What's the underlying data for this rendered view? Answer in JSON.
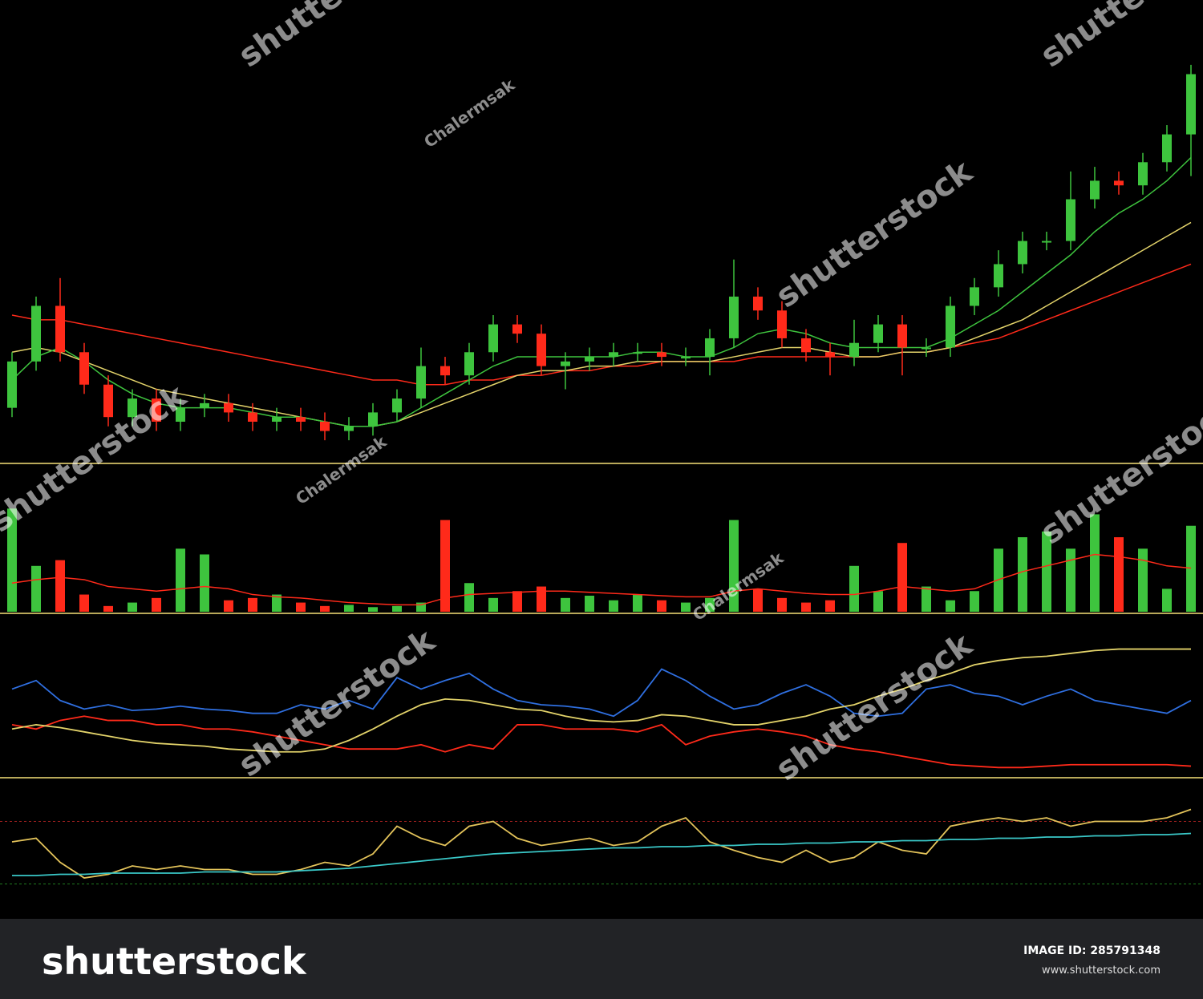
{
  "chart_data": [
    {
      "type": "candlestick",
      "ylim": [
        0,
        100
      ],
      "up_color": "#3ec43e",
      "down_color": "#ff2a1a",
      "open": [
        12,
        22,
        34,
        24,
        17,
        10,
        14,
        9,
        12,
        13,
        11,
        9,
        10,
        9,
        7,
        8,
        11,
        14,
        21,
        19,
        24,
        30,
        28,
        21,
        22,
        23,
        24,
        24,
        23,
        23,
        27,
        36,
        33,
        27,
        24,
        23,
        26,
        30,
        25,
        25,
        34,
        38,
        43,
        48,
        48,
        57,
        61,
        60,
        65,
        71
      ],
      "high": [
        24,
        36,
        40,
        26,
        19,
        16,
        16,
        14,
        15,
        15,
        13,
        12,
        12,
        11,
        10,
        13,
        16,
        25,
        23,
        26,
        32,
        32,
        30,
        24,
        25,
        26,
        26,
        26,
        25,
        29,
        44,
        38,
        35,
        29,
        26,
        31,
        32,
        32,
        27,
        36,
        40,
        46,
        50,
        50,
        63,
        64,
        63,
        67,
        73,
        86
      ],
      "low": [
        10,
        20,
        22,
        15,
        8,
        8,
        7,
        7,
        10,
        9,
        7,
        7,
        7,
        5,
        5,
        6,
        9,
        12,
        17,
        17,
        22,
        26,
        19,
        16,
        20,
        21,
        22,
        21,
        21,
        19,
        25,
        31,
        25,
        22,
        19,
        21,
        24,
        19,
        23,
        23,
        32,
        36,
        41,
        46,
        46,
        55,
        58,
        58,
        63,
        62
      ],
      "close": [
        22,
        34,
        24,
        17,
        10,
        14,
        9,
        12,
        13,
        11,
        9,
        10,
        9,
        7,
        8,
        11,
        14,
        21,
        19,
        24,
        30,
        28,
        21,
        22,
        23,
        24,
        24,
        23,
        23,
        27,
        36,
        33,
        27,
        24,
        23,
        26,
        30,
        25,
        25,
        34,
        38,
        43,
        48,
        48,
        57,
        61,
        60,
        65,
        71,
        84
      ],
      "series": [
        {
          "color": "#ff2a1a",
          "values": [
            32,
            31,
            31,
            30,
            29,
            28,
            27,
            26,
            25,
            24,
            23,
            22,
            21,
            20,
            19,
            18,
            18,
            17,
            17,
            18,
            18,
            19,
            19,
            20,
            20,
            21,
            21,
            22,
            22,
            22,
            22,
            23,
            23,
            23,
            23,
            23,
            23,
            24,
            24,
            25,
            26,
            27,
            29,
            31,
            33,
            35,
            37,
            39,
            41,
            43
          ]
        },
        {
          "color": "#e3d36a",
          "values": [
            24,
            25,
            24,
            22,
            20,
            18,
            16,
            15,
            14,
            13,
            12,
            11,
            10,
            9,
            8,
            8,
            9,
            11,
            13,
            15,
            17,
            19,
            20,
            20,
            21,
            21,
            22,
            22,
            22,
            22,
            23,
            24,
            25,
            25,
            24,
            23,
            23,
            24,
            24,
            25,
            27,
            29,
            31,
            34,
            37,
            40,
            43,
            46,
            49,
            52
          ]
        },
        {
          "color": "#3ec43e",
          "values": [
            18,
            23,
            25,
            22,
            18,
            15,
            13,
            12,
            12,
            12,
            11,
            10,
            10,
            9,
            8,
            8,
            9,
            12,
            15,
            18,
            21,
            23,
            23,
            23,
            23,
            23,
            24,
            24,
            23,
            23,
            25,
            28,
            29,
            28,
            26,
            25,
            25,
            25,
            25,
            27,
            30,
            33,
            37,
            41,
            45,
            50,
            54,
            57,
            61,
            66
          ]
        }
      ]
    },
    {
      "type": "bar",
      "ylim": [
        0,
        100
      ],
      "up_color": "#3ec43e",
      "down_color": "#ff2a1a",
      "values": [
        90,
        40,
        45,
        15,
        5,
        8,
        12,
        55,
        50,
        10,
        12,
        15,
        8,
        5,
        6,
        4,
        5,
        8,
        80,
        25,
        12,
        18,
        22,
        12,
        14,
        10,
        15,
        10,
        8,
        12,
        80,
        20,
        12,
        8,
        10,
        40,
        18,
        60,
        22,
        10,
        18,
        55,
        65,
        70,
        55,
        85,
        65,
        55,
        20,
        75
      ],
      "series": [
        {
          "color": "#ff2a1a",
          "values": [
            25,
            28,
            30,
            28,
            22,
            20,
            18,
            20,
            22,
            20,
            15,
            13,
            12,
            10,
            8,
            7,
            6,
            6,
            12,
            15,
            16,
            17,
            18,
            18,
            17,
            16,
            15,
            14,
            13,
            13,
            18,
            20,
            18,
            16,
            15,
            15,
            18,
            22,
            20,
            18,
            20,
            28,
            35,
            40,
            45,
            50,
            48,
            45,
            40,
            38
          ]
        }
      ]
    },
    {
      "type": "line",
      "ylim": [
        0,
        100
      ],
      "series": [
        {
          "color": "#2f6fe0",
          "values": [
            61,
            67,
            53,
            47,
            50,
            46,
            47,
            49,
            47,
            46,
            44,
            44,
            50,
            47,
            53,
            47,
            69,
            61,
            67,
            72,
            61,
            53,
            50,
            49,
            47,
            42,
            53,
            75,
            67,
            56,
            47,
            50,
            58,
            64,
            56,
            44,
            42,
            44,
            61,
            64,
            58,
            56,
            50,
            56,
            61,
            53,
            50,
            47,
            44,
            53
          ]
        },
        {
          "color": "#ff2a1a",
          "values": [
            36,
            33,
            39,
            42,
            39,
            39,
            36,
            36,
            33,
            33,
            31,
            28,
            25,
            22,
            19,
            19,
            19,
            22,
            17,
            22,
            19,
            36,
            36,
            33,
            33,
            33,
            31,
            36,
            22,
            28,
            31,
            33,
            31,
            28,
            22,
            19,
            17,
            14,
            11,
            8,
            7,
            6,
            6,
            7,
            8,
            8,
            8,
            8,
            8,
            7
          ]
        },
        {
          "color": "#e3d36a",
          "values": [
            33,
            36,
            34,
            31,
            28,
            25,
            23,
            22,
            21,
            19,
            18,
            17,
            17,
            19,
            25,
            33,
            42,
            50,
            54,
            53,
            50,
            47,
            46,
            42,
            39,
            38,
            39,
            43,
            42,
            39,
            36,
            36,
            39,
            42,
            47,
            50,
            56,
            61,
            67,
            72,
            78,
            81,
            83,
            84,
            86,
            88,
            89,
            89,
            89,
            89
          ]
        }
      ]
    },
    {
      "type": "line",
      "ylim": [
        0,
        100
      ],
      "reference_lines": [
        {
          "value": 77,
          "color": "#a02020"
        },
        {
          "value": 25,
          "color": "#207a20"
        }
      ],
      "series": [
        {
          "color": "#e3c35a",
          "values": [
            60,
            63,
            43,
            30,
            33,
            40,
            37,
            40,
            37,
            37,
            33,
            33,
            37,
            43,
            40,
            50,
            73,
            63,
            57,
            73,
            77,
            63,
            57,
            60,
            63,
            57,
            60,
            73,
            80,
            60,
            53,
            47,
            43,
            53,
            43,
            47,
            60,
            53,
            50,
            73,
            77,
            80,
            77,
            80,
            73,
            77,
            77,
            77,
            80,
            87
          ]
        },
        {
          "color": "#3ac8c8",
          "values": [
            32,
            32,
            33,
            33,
            34,
            34,
            34,
            34,
            35,
            35,
            35,
            35,
            36,
            37,
            38,
            40,
            42,
            44,
            46,
            48,
            50,
            51,
            52,
            53,
            54,
            55,
            55,
            56,
            56,
            57,
            57,
            58,
            58,
            59,
            59,
            60,
            60,
            61,
            61,
            62,
            62,
            63,
            63,
            64,
            64,
            65,
            65,
            66,
            66,
            67
          ]
        }
      ]
    }
  ],
  "watermarks": [
    "shutterstock",
    "Chalermsak"
  ],
  "footer": {
    "logo": "shutterstock",
    "image_id": "IMAGE ID: 285791348",
    "url": "www.shutterstock.com"
  }
}
